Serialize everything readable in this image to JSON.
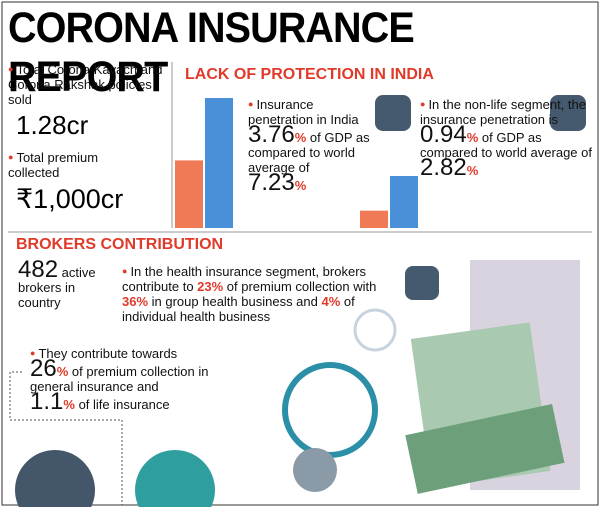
{
  "header": {
    "title": "CORONA INSURANCE REPORT"
  },
  "policies": {
    "label": "Total Corona Kavach and Corona Rakshak policies sold",
    "value": "1.28cr"
  },
  "premium": {
    "label": "Total premium collected",
    "value": "₹1,000cr"
  },
  "protection": {
    "title": "LACK OF PROTECTION IN INDIA",
    "insurance": {
      "label": "Insurance penetration in India",
      "india": 3.76,
      "india_unit": "%",
      "mid": "of GDP as compared to world average of",
      "world": 7.23,
      "world_unit": "%"
    },
    "nonlife": {
      "label": "In the non-life segment, the insurance penetration is",
      "india": 0.94,
      "india_unit": "%",
      "mid": "of GDP as compared to world average of",
      "world": 2.82,
      "world_unit": "%"
    },
    "india_color": "#f07a55",
    "world_color": "#4a90d9"
  },
  "brokers": {
    "title": "BROKERS CONTRIBUTION",
    "count": 482,
    "count_label": "active",
    "count_rest": "brokers in country",
    "health": [
      "In the health insurance segment, brokers contribute to ",
      "23%",
      " of premium collection with ",
      "36%",
      " in group health business and ",
      "4%",
      " of individual health business"
    ],
    "contribution": {
      "label": "They contribute towards",
      "general": 26,
      "general_unit": "%",
      "general_text": "of premium collection in general insurance and",
      "life": 1.1,
      "life_unit": "%",
      "life_text": "of life insurance"
    }
  }
}
